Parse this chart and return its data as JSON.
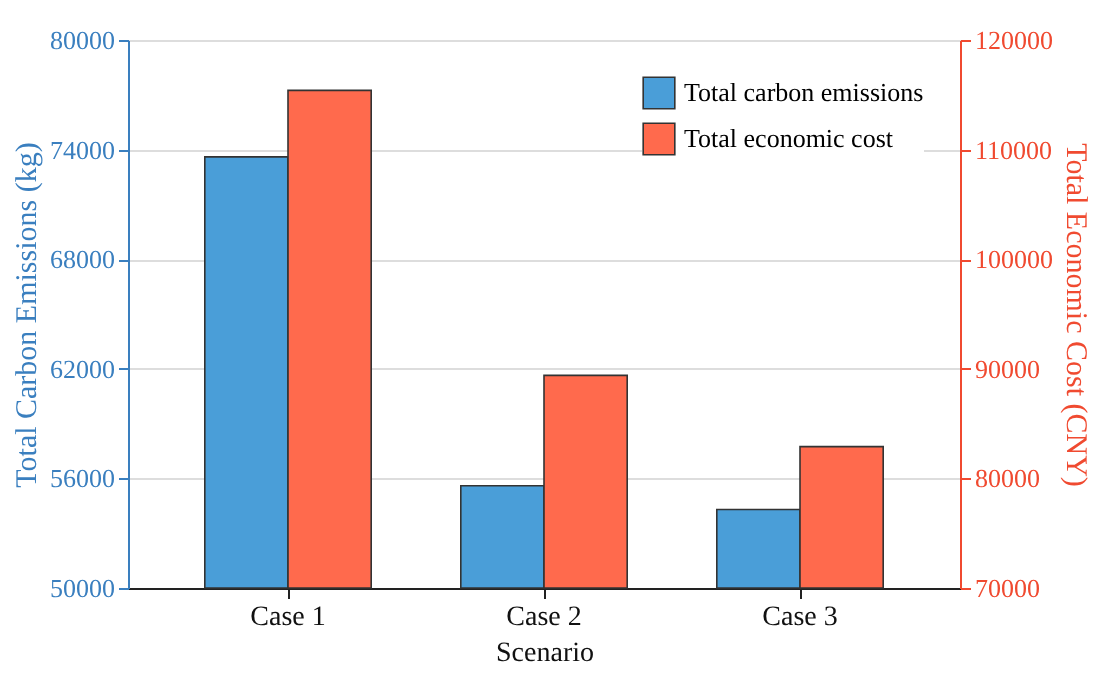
{
  "chart_data": {
    "type": "bar",
    "xlabel": "Scenario",
    "ylabel": "Total Carbon Emissions (kg)",
    "y2label": "Total Economic Cost (CNY)",
    "categories": [
      "Case 1",
      "Case 2",
      "Case 3"
    ],
    "series": [
      {
        "name": "Total carbon emissions",
        "color": "#4a9ed8",
        "values": [
          73600,
          55600,
          54300
        ]
      },
      {
        "name": "Total economic cost",
        "color": "#ff6a4d",
        "axis": "y2",
        "values": [
          115400,
          89400,
          82900
        ]
      }
    ],
    "ylim": [
      50000,
      80000
    ],
    "yticks": [
      50000,
      56000,
      62000,
      68000,
      74000,
      80000
    ],
    "y2lim": [
      70000,
      120000
    ],
    "y2ticks": [
      70000,
      80000,
      90000,
      100000,
      110000,
      120000
    ],
    "grid": "y",
    "legend": "top right"
  }
}
